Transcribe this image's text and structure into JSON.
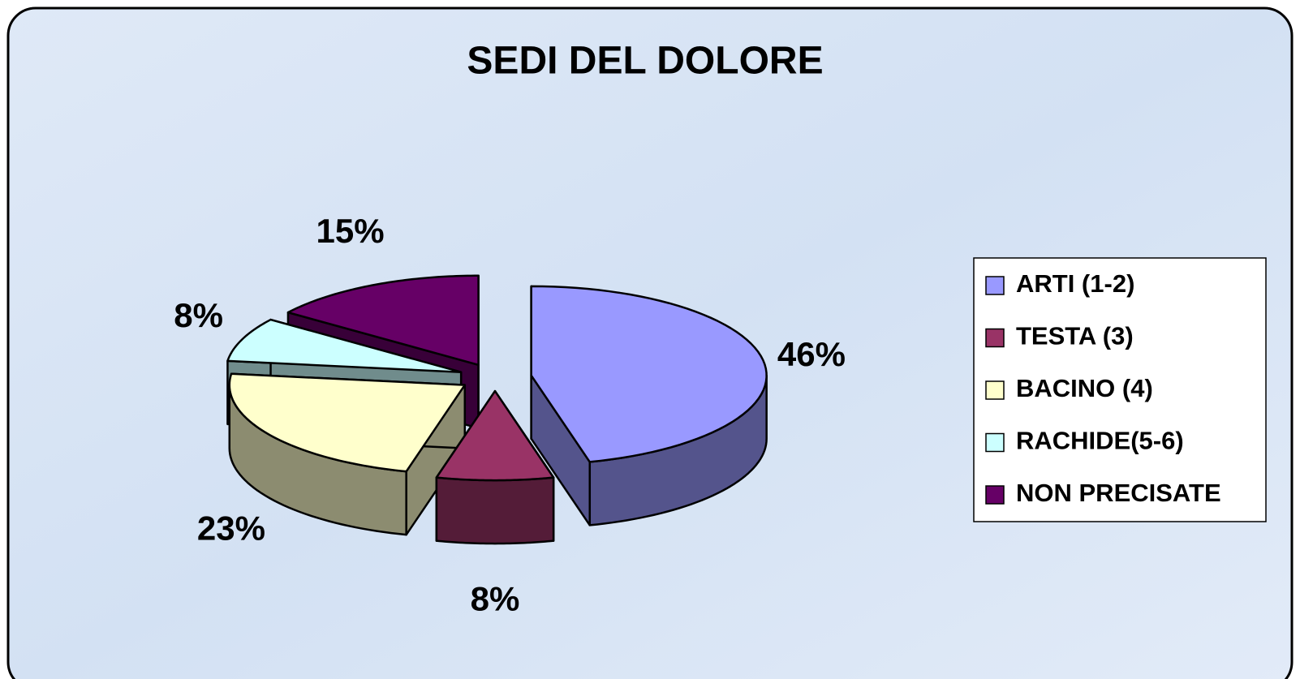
{
  "chart_data": {
    "type": "pie",
    "title": "SEDI DEL DOLORE",
    "categories": [
      "ARTI (1-2)",
      "TESTA (3)",
      "BACINO (4)",
      "RACHIDE(5-6)",
      "NON PRECISATE"
    ],
    "values": [
      46,
      8,
      23,
      8,
      15
    ],
    "value_labels": [
      "46%",
      "8%",
      "23%",
      "8%",
      "15%"
    ],
    "colors": [
      "#9999ff",
      "#993366",
      "#ffffcc",
      "#ccffff",
      "#660066"
    ],
    "legend": "right"
  }
}
